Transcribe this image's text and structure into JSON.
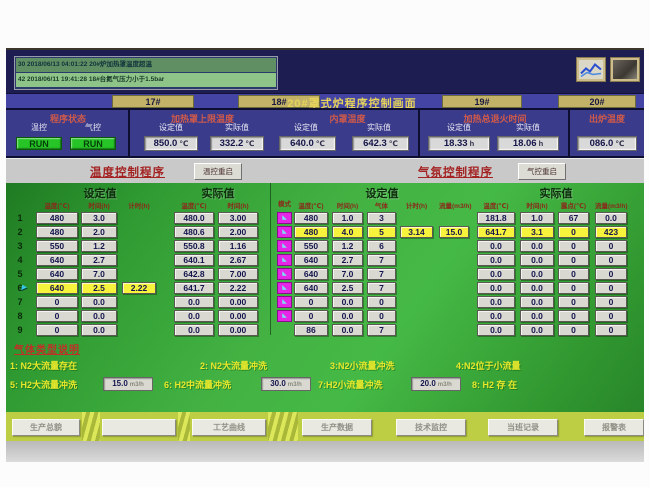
{
  "alarms": [
    "30  2018/06/13  04:01:22  20#炉加热罩温度超温",
    "42  2018/06/11  19:41:28  18#台氮气压力小于1.5bar"
  ],
  "tabs": {
    "t17": "17#",
    "t18": "18#",
    "t19": "19#",
    "t20": "20#",
    "title": "20#罩式炉程序控制画面"
  },
  "status": {
    "title": "程序状态",
    "temp_label": "温控",
    "gas_label": "气控",
    "temp_run": "RUN",
    "gas_run": "RUN"
  },
  "header": {
    "set_label": "设定值",
    "actual_label": "实际值",
    "heating_cover": {
      "title": "加热罩上限温度",
      "set": "850.0",
      "actual": "332.2",
      "unit": "℃"
    },
    "inner_cover": {
      "title": "内罩温度",
      "set": "640.0",
      "actual": "642.3",
      "unit": "℃"
    },
    "anneal_time": {
      "title": "加热总退火时间",
      "set": "18.33",
      "actual": "18.06",
      "unit": "h"
    },
    "discharge": {
      "title": "出炉温度",
      "value": "086.0",
      "unit": "℃"
    }
  },
  "programs": {
    "temp_title": "温度控制程序",
    "temp_restart": "温控重启",
    "gas_title": "气氛控制程序",
    "gas_restart": "气控重启"
  },
  "temp_program": {
    "set_header": "设定值",
    "actual_header": "实际值",
    "columns_set": [
      "温度(℃)",
      "时间(h)",
      "计时(h)"
    ],
    "columns_actual": [
      "温度(℃)",
      "时间(h)"
    ],
    "rows": [
      {
        "num": "1",
        "set_temp": "480",
        "set_time": "3.0",
        "timer": "",
        "act_temp": "480.0",
        "act_time": "3.00",
        "active": false
      },
      {
        "num": "2",
        "set_temp": "480",
        "set_time": "2.0",
        "timer": "",
        "act_temp": "480.6",
        "act_time": "2.00",
        "active": false
      },
      {
        "num": "3",
        "set_temp": "550",
        "set_time": "1.2",
        "timer": "",
        "act_temp": "550.8",
        "act_time": "1.16",
        "active": false
      },
      {
        "num": "4",
        "set_temp": "640",
        "set_time": "2.7",
        "timer": "",
        "act_temp": "640.1",
        "act_time": "2.67",
        "active": false
      },
      {
        "num": "5",
        "set_temp": "640",
        "set_time": "7.0",
        "timer": "",
        "act_temp": "642.8",
        "act_time": "7.00",
        "active": false
      },
      {
        "num": "6",
        "set_temp": "640",
        "set_time": "2.5",
        "timer": "2.22",
        "act_temp": "641.7",
        "act_time": "2.22",
        "active": true
      },
      {
        "num": "7",
        "set_temp": "0",
        "set_time": "0.0",
        "timer": "",
        "act_temp": "0.0",
        "act_time": "0.00",
        "active": false
      },
      {
        "num": "8",
        "set_temp": "0",
        "set_time": "0.0",
        "timer": "",
        "act_temp": "0.0",
        "act_time": "0.00",
        "active": false
      },
      {
        "num": "9",
        "set_temp": "0",
        "set_time": "0.0",
        "timer": "",
        "act_temp": "0.0",
        "act_time": "0.00",
        "active": false
      }
    ]
  },
  "gas_program": {
    "set_header": "设定值",
    "actual_header": "实际值",
    "columns_set": [
      "模式",
      "温度(℃)",
      "时间(h)",
      "气体",
      "计时(h)",
      "流量(m3/h)"
    ],
    "columns_actual": [
      "温度(℃)",
      "时间(h)",
      "露点(℃)",
      "流量(m3/h)"
    ],
    "rows": [
      {
        "mode": true,
        "set_temp": "480",
        "set_time": "1.0",
        "gas": "3",
        "timer": "",
        "flow": "",
        "act_temp": "181.8",
        "act_time": "1.0",
        "act_dew": "67",
        "act_flow": "0.0",
        "active": false
      },
      {
        "mode": true,
        "set_temp": "480",
        "set_time": "4.0",
        "gas": "5",
        "timer": "3.14",
        "flow": "15.0",
        "act_temp": "641.7",
        "act_time": "3.1",
        "act_dew": "0",
        "act_flow": "423",
        "active": true
      },
      {
        "mode": true,
        "set_temp": "550",
        "set_time": "1.2",
        "gas": "6",
        "timer": "",
        "flow": "",
        "act_temp": "0.0",
        "act_time": "0.0",
        "act_dew": "0",
        "act_flow": "0",
        "active": false
      },
      {
        "mode": true,
        "set_temp": "640",
        "set_time": "2.7",
        "gas": "7",
        "timer": "",
        "flow": "",
        "act_temp": "0.0",
        "act_time": "0.0",
        "act_dew": "0",
        "act_flow": "0",
        "active": false
      },
      {
        "mode": true,
        "set_temp": "640",
        "set_time": "7.0",
        "gas": "7",
        "timer": "",
        "flow": "",
        "act_temp": "0.0",
        "act_time": "0.0",
        "act_dew": "0",
        "act_flow": "0",
        "active": false
      },
      {
        "mode": true,
        "set_temp": "640",
        "set_time": "2.5",
        "gas": "7",
        "timer": "",
        "flow": "",
        "act_temp": "0.0",
        "act_time": "0.0",
        "act_dew": "0",
        "act_flow": "0",
        "active": false
      },
      {
        "mode": true,
        "set_temp": "0",
        "set_time": "0.0",
        "gas": "0",
        "timer": "",
        "flow": "",
        "act_temp": "0.0",
        "act_time": "0.0",
        "act_dew": "0",
        "act_flow": "0",
        "active": false
      },
      {
        "mode": true,
        "set_temp": "0",
        "set_time": "0.0",
        "gas": "0",
        "timer": "",
        "flow": "",
        "act_temp": "0.0",
        "act_time": "0.0",
        "act_dew": "0",
        "act_flow": "0",
        "active": false
      },
      {
        "mode": false,
        "set_temp": "86",
        "set_time": "0.0",
        "gas": "7",
        "timer": "",
        "flow": "",
        "act_temp": "0.0",
        "act_time": "0.0",
        "act_dew": "0",
        "act_flow": "0",
        "active": false
      }
    ]
  },
  "gas_legend": {
    "title": "气体类型说明",
    "row1": [
      {
        "label": "1: N2大流量存在"
      },
      {
        "label": "2: N2大流量冲洗"
      },
      {
        "label": "3:N2小流量冲洗"
      },
      {
        "label": "4:N2位于小流量"
      }
    ],
    "row2": [
      {
        "label": "5: H2大流量冲洗",
        "value": "15.0",
        "unit": "m3/h"
      },
      {
        "label": "6: H2中流量冲洗",
        "value": "30.0",
        "unit": "m3/h"
      },
      {
        "label": "7:H2小流量冲洗",
        "value": "20.0",
        "unit": "m3/h"
      },
      {
        "label": "8: H2 存 在"
      }
    ]
  },
  "bottom_buttons": [
    "生产总貌",
    "",
    "工艺曲线",
    "生产数据",
    "技术监控",
    "当班记录",
    "报警表"
  ]
}
